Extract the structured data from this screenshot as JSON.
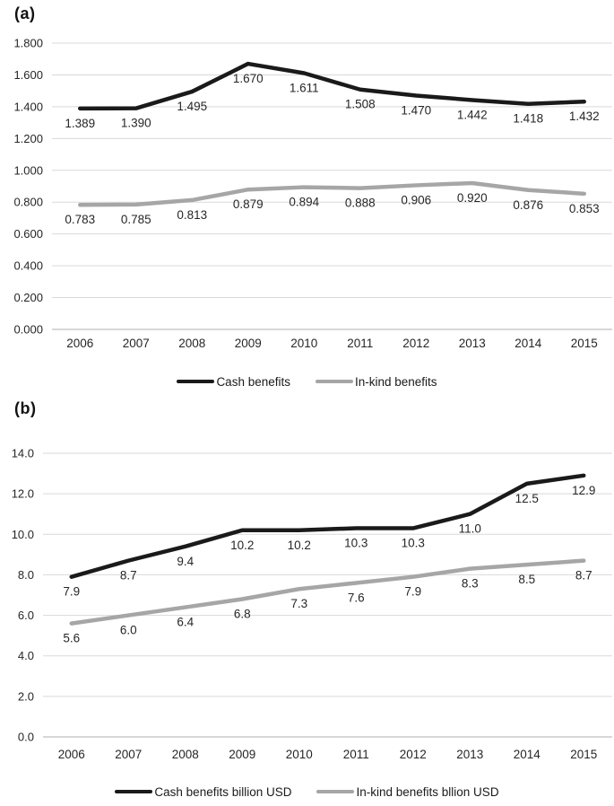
{
  "figure": {
    "background": "#ffffff"
  },
  "colors": {
    "cash_line": "#1a1a1a",
    "inkind_line": "#a6a6a6",
    "gridline": "#d9d9d9",
    "axis_line": "#bfbfbf",
    "label_text": "#262626"
  },
  "chart_data": [
    {
      "type": "line",
      "title": "(a)",
      "xlabel": "",
      "ylabel": "",
      "grid": true,
      "legend_position": "bottom",
      "categories": [
        "2006",
        "2007",
        "2008",
        "2009",
        "2010",
        "2011",
        "2012",
        "2013",
        "2014",
        "2015"
      ],
      "ylim": [
        0,
        1.8
      ],
      "ytick_step": 0.2,
      "ytick_decimals": 3,
      "label_decimals": 3,
      "series": [
        {
          "name": "Cash benefits",
          "color": "#1a1a1a",
          "values": [
            1.389,
            1.39,
            1.495,
            1.67,
            1.611,
            1.508,
            1.47,
            1.442,
            1.418,
            1.432
          ]
        },
        {
          "name": "In-kind benefits",
          "color": "#a6a6a6",
          "values": [
            0.783,
            0.785,
            0.813,
            0.879,
            0.894,
            0.888,
            0.906,
            0.92,
            0.876,
            0.853
          ]
        }
      ]
    },
    {
      "type": "line",
      "title": "(b)",
      "xlabel": "",
      "ylabel": "",
      "grid": true,
      "legend_position": "bottom",
      "categories": [
        "2006",
        "2007",
        "2008",
        "2009",
        "2010",
        "2011",
        "2012",
        "2013",
        "2014",
        "2015"
      ],
      "ylim": [
        0,
        14
      ],
      "ytick_step": 2,
      "ytick_decimals": 1,
      "label_decimals": 1,
      "series": [
        {
          "name": "Cash benefits billion USD",
          "color": "#1a1a1a",
          "values": [
            7.9,
            8.7,
            9.4,
            10.2,
            10.2,
            10.3,
            10.3,
            11.0,
            12.5,
            12.9
          ]
        },
        {
          "name": "In-kind benefits bllion USD",
          "color": "#a6a6a6",
          "values": [
            5.6,
            6.0,
            6.4,
            6.8,
            7.3,
            7.6,
            7.9,
            8.3,
            8.5,
            8.7
          ]
        }
      ]
    }
  ]
}
